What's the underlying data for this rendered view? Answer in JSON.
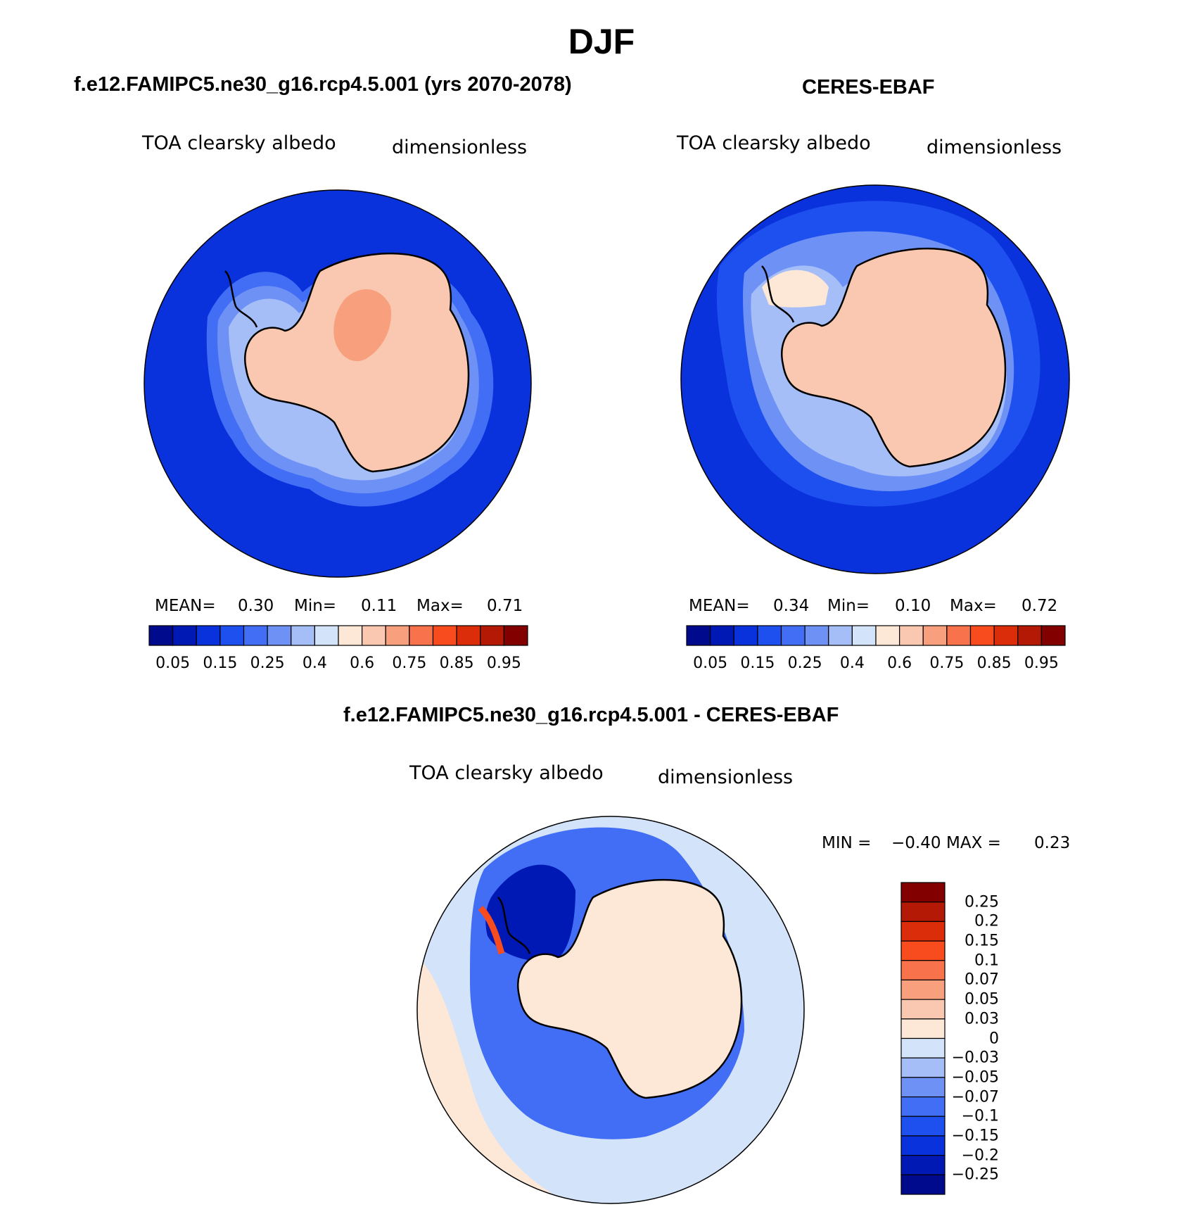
{
  "title": "DJF",
  "panels": {
    "model": {
      "title": "f.e12.FAMIPC5.ne30_g16.rcp4.5.001 (yrs 2070-2078)",
      "variable": "TOA clearsky albedo",
      "units": "dimensionless",
      "stats": {
        "mean_label": "MEAN=",
        "mean": "0.30",
        "min_label": "Min=",
        "min": "0.11",
        "max_label": "Max=",
        "max": "0.71"
      }
    },
    "obs": {
      "title": "CERES-EBAF",
      "variable": "TOA clearsky albedo",
      "units": "dimensionless",
      "stats": {
        "mean_label": "MEAN=",
        "mean": "0.34",
        "min_label": "Min=",
        "min": "0.10",
        "max_label": "Max=",
        "max": "0.72"
      }
    },
    "diff": {
      "title": "f.e12.FAMIPC5.ne30_g16.rcp4.5.001 - CERES-EBAF",
      "variable": "TOA clearsky albedo",
      "units": "dimensionless",
      "stats": {
        "min_label": "MIN =",
        "min": "−0.40",
        "max_label": "MAX =",
        "max": "0.23"
      }
    }
  },
  "colorbar_main": {
    "colors": [
      "#000a8c",
      "#0019b4",
      "#0a32dc",
      "#1e50f0",
      "#416ef5",
      "#6e91f5",
      "#a5bef8",
      "#d2e3fa",
      "#fde7d7",
      "#fac8b1",
      "#f8a07d",
      "#f8734b",
      "#f84b1e",
      "#dc2d0a",
      "#b41905",
      "#820000"
    ],
    "tick_labels": [
      "0.05",
      "0.15",
      "0.25",
      "0.4",
      "0.6",
      "0.75",
      "0.85",
      "0.95"
    ]
  },
  "colorbar_diff": {
    "colors_top_to_bottom": [
      "#820000",
      "#b41905",
      "#dc2d0a",
      "#f84b1e",
      "#f8734b",
      "#f8a07d",
      "#fac8b1",
      "#fde7d7",
      "#d2e3fa",
      "#a5bef8",
      "#6e91f5",
      "#416ef5",
      "#1e50f0",
      "#0a32dc",
      "#0019b4",
      "#000a8c"
    ],
    "tick_labels": [
      "0.25",
      "0.2",
      "0.15",
      "0.1",
      "0.07",
      "0.05",
      "0.03",
      "0",
      "−0.03",
      "−0.05",
      "−0.07",
      "−0.1",
      "−0.15",
      "−0.2",
      "−0.25"
    ]
  },
  "map_colors": {
    "ocean_model": "#0a32dc",
    "ocean_obs": "#0a32dc",
    "ice_land": "#fac8b1",
    "ice_dark": "#f8a07d",
    "diff_background": "#d2e3fa",
    "diff_land": "#fde7d7",
    "diff_negative": "#1e50f0",
    "diff_strong_negative": "#0019b4",
    "diff_positive": "#f84b1e"
  }
}
